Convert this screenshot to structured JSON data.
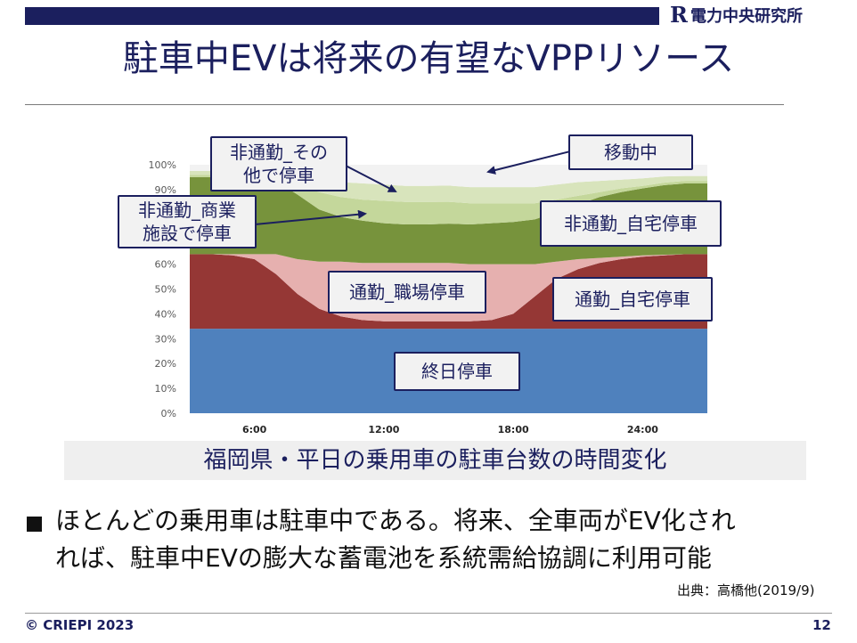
{
  "header": {
    "logo_mark": "R",
    "logo_text": "電力中央研究所",
    "title": "駐車中EVは将来の有望なVPPリソース"
  },
  "chart_data": {
    "type": "area",
    "stacked": true,
    "x_ticks": [
      "6:00",
      "12:00",
      "18:00",
      "24:00"
    ],
    "y_ticks": [
      "0%",
      "10%",
      "20%",
      "30%",
      "40%",
      "50%",
      "60%",
      "70%",
      "80%",
      "90%",
      "100%"
    ],
    "ylim": [
      0,
      100
    ],
    "x_hours": [
      3,
      4,
      5,
      6,
      7,
      8,
      9,
      10,
      11,
      12,
      13,
      14,
      15,
      16,
      17,
      18,
      19,
      20,
      21,
      22,
      23,
      24,
      25,
      26,
      27
    ],
    "series": [
      {
        "name": "終日停車",
        "color": "#4f81bd",
        "values": [
          34,
          34,
          34,
          34,
          34,
          34,
          34,
          34,
          34,
          34,
          34,
          34,
          34,
          34,
          34,
          34,
          34,
          34,
          34,
          34,
          34,
          34,
          34,
          34,
          34
        ]
      },
      {
        "name": "通勤_自宅停車",
        "color": "#953735",
        "values": [
          30,
          30,
          29.5,
          28,
          22,
          14,
          8,
          5,
          3.5,
          3,
          3,
          3,
          3,
          3,
          3.5,
          6,
          13,
          20,
          24,
          26.5,
          28,
          29,
          29.5,
          30,
          30
        ]
      },
      {
        "name": "通勤_職場停車",
        "color": "#e6b0af",
        "values": [
          0,
          0,
          0.5,
          2,
          8,
          14,
          19,
          22,
          23,
          23.5,
          23.5,
          23.5,
          23.5,
          23,
          22.5,
          20,
          13,
          7,
          4,
          2,
          1,
          0.5,
          0.3,
          0,
          0
        ]
      },
      {
        "name": "非通勤_自宅停車",
        "color": "#77933c",
        "values": [
          31,
          31,
          31,
          30.5,
          29.5,
          26,
          21,
          18,
          17,
          16,
          15.5,
          15.5,
          15.8,
          16,
          16.5,
          17,
          18,
          20,
          22,
          24.5,
          26,
          27,
          28,
          28.5,
          28.5
        ]
      },
      {
        "name": "非通勤_商業施設で停車",
        "color": "#c4d79b",
        "values": [
          1,
          1,
          1,
          1.2,
          1.5,
          4,
          7,
          8,
          8.5,
          9,
          9,
          9,
          8.8,
          8.5,
          8,
          7.5,
          6.5,
          5,
          3.5,
          2,
          1.5,
          1,
          1,
          1,
          1
        ]
      },
      {
        "name": "非通勤_その他で停車",
        "color": "#d8e4bc",
        "values": [
          1.5,
          1.5,
          1.5,
          1.8,
          2.5,
          4,
          5.5,
          6,
          6.5,
          6.5,
          6.5,
          6.5,
          6.5,
          6.5,
          6.5,
          6.5,
          6.5,
          6,
          5.5,
          4.5,
          3.5,
          3,
          2.5,
          2,
          2
        ]
      },
      {
        "name": "移動中",
        "color": "#f2f2f2",
        "values": [
          2.5,
          2.5,
          2.5,
          2.5,
          2,
          4,
          5.5,
          7,
          7.5,
          8,
          8.5,
          8.5,
          8.4,
          9,
          9,
          9,
          9,
          8,
          7,
          6.5,
          6,
          5.5,
          4.7,
          4.5,
          4.5
        ]
      }
    ],
    "callouts": {
      "nonCommuteOther": "非通勤_その\n他で停車",
      "moving": "移動中",
      "nonCommuteCommercial": "非通勤_商業\n施設で停車",
      "nonCommuteHome": "非通勤_自宅停車",
      "commuteWork": "通勤_職場停車",
      "commuteHome": "通勤_自宅停車",
      "allDay": "終日停車"
    }
  },
  "caption": "福岡県・平日の乗用車の駐車台数の時間変化",
  "bullet": {
    "line1": "ほとんどの乗用車は駐車中である。将来、全車両がEV化され",
    "line2": "れば、駐車中EVの膨大な蓄電池を系統需給協調に利用可能"
  },
  "source": "出典：高橋他(2019/9)",
  "footer": {
    "copyright": "©  CRIEPI  2023",
    "page": "12"
  }
}
